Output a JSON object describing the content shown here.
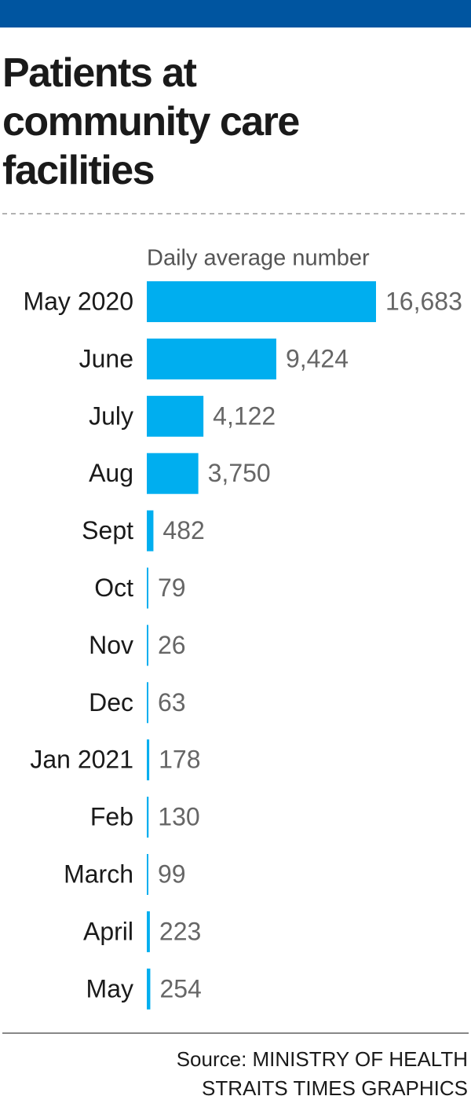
{
  "chart_data": {
    "type": "bar",
    "orientation": "horizontal",
    "title": "Patients at community care facilities",
    "subtitle": "Daily average number",
    "categories": [
      "May 2020",
      "June",
      "July",
      "Aug",
      "Sept",
      "Oct",
      "Nov",
      "Dec",
      "Jan 2021",
      "Feb",
      "March",
      "April",
      "May"
    ],
    "values": [
      16683,
      9424,
      4122,
      3750,
      482,
      79,
      26,
      63,
      178,
      130,
      99,
      223,
      254
    ],
    "value_labels": [
      "16,683",
      "9,424",
      "4,122",
      "3,750",
      "482",
      "79",
      "26",
      "63",
      "178",
      "130",
      "99",
      "223",
      "254"
    ],
    "color": "#00aeef",
    "source": [
      "Source: MINISTRY OF HEALTH",
      "STRAITS TIMES GRAPHICS"
    ]
  }
}
